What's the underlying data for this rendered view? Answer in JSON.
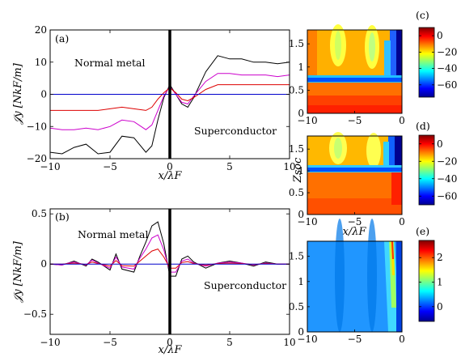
{
  "chart_data": [
    {
      "id": "a",
      "type": "line",
      "panel_label": "(a)",
      "xlabel": "x/λF",
      "ylabel": "𝒥y [NkF/m]",
      "xlim": [
        -10,
        10
      ],
      "ylim": [
        -20,
        20
      ],
      "xticks": [
        -10,
        -5,
        0,
        5,
        10
      ],
      "yticks": [
        -20,
        -10,
        0,
        10,
        20
      ],
      "annotations": [
        "Normal metal",
        "Superconductor"
      ],
      "interface_x": 0,
      "x": [
        -10,
        -9,
        -8,
        -7,
        -6,
        -5,
        -4,
        -3,
        -2,
        -1.5,
        -1,
        -0.5,
        0,
        0.5,
        1,
        1.5,
        2,
        3,
        4,
        5,
        6,
        7,
        8,
        9,
        10
      ],
      "series": [
        {
          "color": "#000000",
          "values": [
            -18,
            -18.5,
            -16.5,
            -15.5,
            -18.5,
            -18,
            -13,
            -13.5,
            -18,
            -16,
            -8,
            -1,
            3,
            0,
            -3,
            -4,
            -1,
            7,
            12,
            11,
            11,
            10,
            10,
            9.5,
            10
          ]
        },
        {
          "color": "#cc00cc",
          "values": [
            -10.5,
            -11,
            -11,
            -10.5,
            -11,
            -10,
            -8,
            -8.5,
            -11,
            -9.5,
            -5,
            -0.5,
            2.5,
            0,
            -2.5,
            -3,
            -0.5,
            4,
            6.5,
            6.5,
            6,
            6,
            6,
            5.5,
            6
          ]
        },
        {
          "color": "#dd0000",
          "values": [
            -5,
            -5,
            -5,
            -5,
            -5,
            -4.5,
            -4,
            -4.5,
            -5,
            -4,
            -1.5,
            0.5,
            2,
            0.5,
            -1.5,
            -2,
            -1,
            1.5,
            3,
            3,
            3,
            3,
            3,
            3,
            3
          ]
        },
        {
          "color": "#0000cc",
          "values": [
            0,
            0,
            0,
            0,
            0,
            0,
            0,
            0,
            0,
            0,
            0,
            0,
            0,
            0,
            0,
            0,
            0,
            0,
            0,
            0,
            0,
            0,
            0,
            0,
            0
          ]
        }
      ]
    },
    {
      "id": "b",
      "type": "line",
      "panel_label": "(b)",
      "xlabel": "x/λF",
      "ylabel": "𝒥y [NkF/m]",
      "xlim": [
        -10,
        10
      ],
      "ylim": [
        -0.7,
        0.55
      ],
      "xticks": [
        -10,
        -5,
        0,
        5,
        10
      ],
      "yticks": [
        -0.5,
        0,
        0.5
      ],
      "annotations": [
        "Normal metal",
        "Superconductor"
      ],
      "interface_x": 0,
      "x": [
        -10,
        -9,
        -8.5,
        -8,
        -7,
        -6.5,
        -6,
        -5,
        -4.5,
        -4,
        -3,
        -2.5,
        -2,
        -1.5,
        -1,
        -0.5,
        0,
        0.5,
        1,
        1.5,
        2,
        3,
        4,
        5,
        6,
        7,
        8,
        9,
        10
      ],
      "series": [
        {
          "color": "#000000",
          "values": [
            0,
            -0.01,
            0.01,
            0.03,
            -0.02,
            0.05,
            0.02,
            -0.06,
            0.1,
            -0.05,
            -0.08,
            0.08,
            0.22,
            0.38,
            0.42,
            0.2,
            -0.12,
            -0.12,
            0.05,
            0.08,
            0.02,
            -0.04,
            0.01,
            0.03,
            0.01,
            -0.02,
            0.02,
            0,
            0
          ]
        },
        {
          "color": "#cc00cc",
          "values": [
            0,
            -0.01,
            0.01,
            0.02,
            -0.01,
            0.04,
            0.01,
            -0.04,
            0.07,
            -0.03,
            -0.05,
            0.06,
            0.15,
            0.26,
            0.29,
            0.14,
            -0.08,
            -0.08,
            0.03,
            0.05,
            0.01,
            -0.02,
            0.01,
            0.02,
            0.01,
            -0.01,
            0.01,
            0,
            0
          ]
        },
        {
          "color": "#dd0000",
          "values": [
            0,
            0,
            0.005,
            0.01,
            -0.005,
            0.02,
            0.005,
            -0.02,
            0.035,
            -0.015,
            -0.02,
            0.03,
            0.08,
            0.13,
            0.15,
            0.07,
            -0.04,
            -0.04,
            0.015,
            0.025,
            0.005,
            -0.01,
            0.005,
            0.01,
            0.005,
            -0.005,
            0.005,
            0,
            0
          ]
        },
        {
          "color": "#0000cc",
          "values": [
            0,
            0,
            0,
            0,
            0,
            0,
            0,
            0,
            0,
            0,
            0,
            0,
            0,
            0,
            0,
            0,
            0,
            0,
            0,
            0,
            0,
            0,
            0,
            0,
            0,
            0,
            0,
            0,
            0
          ]
        }
      ]
    },
    {
      "id": "c",
      "type": "heatmap",
      "panel_label": "(c)",
      "xlim": [
        -10,
        0
      ],
      "ylim": [
        0,
        1.8
      ],
      "xticks": [
        -10,
        -5,
        0
      ],
      "yticks": [
        0,
        0.5,
        1,
        1.5
      ],
      "colorbar_ticks": [
        0,
        -20,
        -40,
        -60
      ],
      "colorbar_range": [
        -75,
        10
      ]
    },
    {
      "id": "d",
      "type": "heatmap",
      "panel_label": "(d)",
      "xlabel": "x/λF",
      "ylabel": "Zsoc",
      "xlim": [
        -10,
        0
      ],
      "ylim": [
        0,
        1.8
      ],
      "xticks": [
        -10,
        -5,
        0
      ],
      "yticks": [
        0,
        0.5,
        1,
        1.5
      ],
      "colorbar_ticks": [
        0,
        -20,
        -40,
        -60
      ],
      "colorbar_range": [
        -70,
        10
      ]
    },
    {
      "id": "e",
      "type": "heatmap",
      "panel_label": "(e)",
      "xlim": [
        -10,
        0
      ],
      "ylim": [
        0,
        1.8
      ],
      "xticks": [
        -10,
        -5,
        0
      ],
      "yticks": [
        0,
        0.5,
        1,
        1.5
      ],
      "colorbar_ticks": [
        2,
        1,
        0
      ],
      "colorbar_range": [
        -0.6,
        2.7
      ]
    }
  ]
}
